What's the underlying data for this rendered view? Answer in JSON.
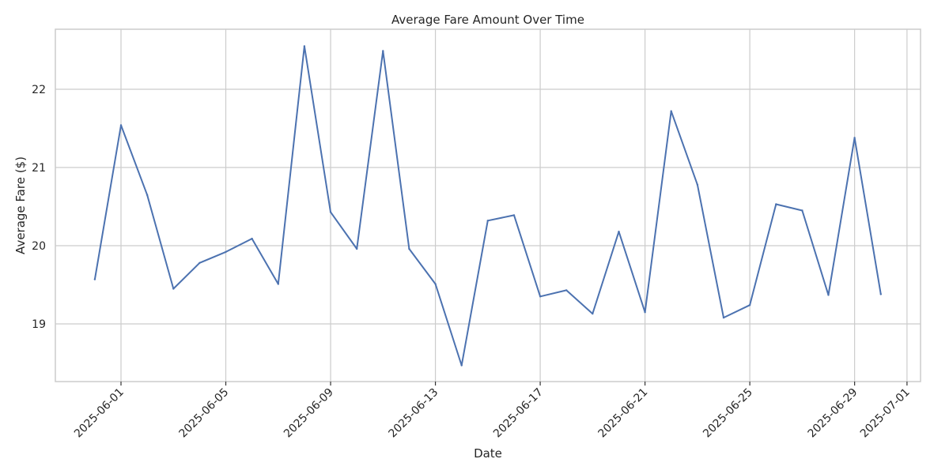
{
  "chart_data": {
    "type": "line",
    "title": "Average Fare Amount Over Time",
    "xlabel": "Date",
    "ylabel": "Average Fare ($)",
    "grid": true,
    "legend": "none",
    "line_color": "#4c72b0",
    "ylim": [
      18.25,
      22.78
    ],
    "xlim": [
      "2025-05-29",
      "2025-07-01"
    ],
    "x_ticks": [
      "2025-06-01",
      "2025-06-05",
      "2025-06-09",
      "2025-06-13",
      "2025-06-17",
      "2025-06-21",
      "2025-06-25",
      "2025-06-29",
      "2025-07-01"
    ],
    "y_ticks": [
      19,
      20,
      21,
      22
    ],
    "series": [
      {
        "x": [
          "2025-05-31",
          "2025-06-01",
          "2025-06-02",
          "2025-06-03",
          "2025-06-04",
          "2025-06-05",
          "2025-06-06",
          "2025-06-07",
          "2025-06-08",
          "2025-06-09",
          "2025-06-10",
          "2025-06-11",
          "2025-06-12",
          "2025-06-13",
          "2025-06-14",
          "2025-06-15",
          "2025-06-16",
          "2025-06-17",
          "2025-06-18",
          "2025-06-19",
          "2025-06-20",
          "2025-06-21",
          "2025-06-22",
          "2025-06-23",
          "2025-06-24",
          "2025-06-25",
          "2025-06-26",
          "2025-06-27",
          "2025-06-28",
          "2025-06-29",
          "2025-06-30"
        ],
        "values": [
          19.57,
          21.54,
          20.65,
          19.45,
          19.78,
          19.92,
          20.09,
          19.51,
          22.55,
          20.43,
          19.96,
          22.49,
          19.96,
          19.51,
          18.47,
          20.32,
          20.39,
          19.35,
          19.43,
          19.13,
          20.18,
          19.15,
          21.72,
          20.78,
          19.08,
          19.24,
          20.53,
          20.45,
          19.37,
          21.38,
          19.38
        ]
      }
    ]
  }
}
